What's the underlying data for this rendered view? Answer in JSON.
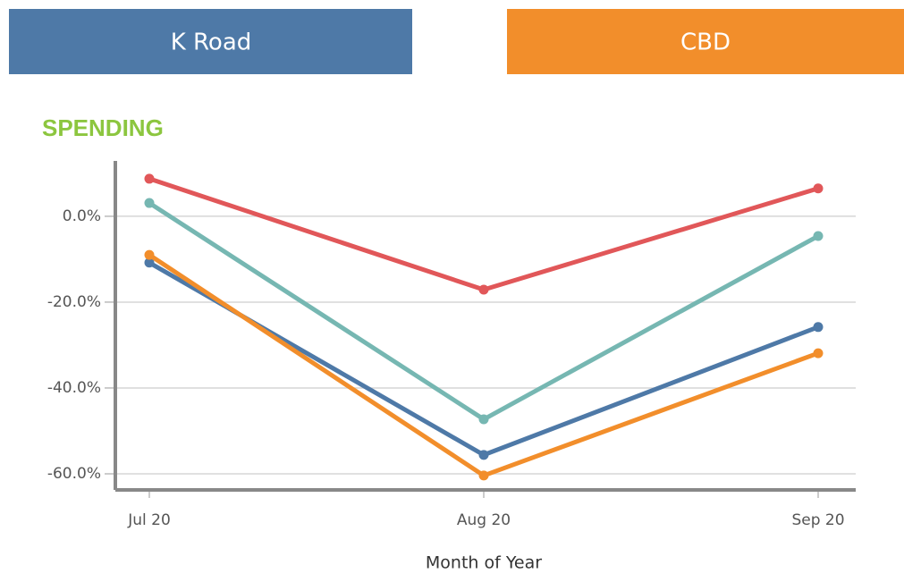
{
  "buttons": [
    {
      "label": "K Road",
      "color": "#4e79a7"
    },
    {
      "label": "CBD",
      "color": "#f28e2b"
    }
  ],
  "chart_data": {
    "type": "line",
    "title": "SPENDING",
    "x_label": "Month of Year",
    "categories": [
      "Jul 20",
      "Aug 20",
      "Sep 20"
    ],
    "series": [
      {
        "color": "#e15759",
        "values": [
          8.75,
          -17.1,
          6.5
        ]
      },
      {
        "color": "#76b7b2",
        "values": [
          3.1,
          -47.3,
          -4.6
        ]
      },
      {
        "color": "#4e79a7",
        "values": [
          -10.8,
          -55.6,
          -25.8
        ]
      },
      {
        "color": "#f28e2b",
        "values": [
          -9.0,
          -60.4,
          -31.9
        ]
      }
    ],
    "ylim": [
      -63.75,
      12.9
    ],
    "yticks": [
      {
        "value": 0,
        "label": "0.0%"
      },
      {
        "value": -20,
        "label": "-20.0%"
      },
      {
        "value": -40,
        "label": "-40.0%"
      },
      {
        "value": -60,
        "label": "-60.0%"
      }
    ],
    "grid": true
  }
}
